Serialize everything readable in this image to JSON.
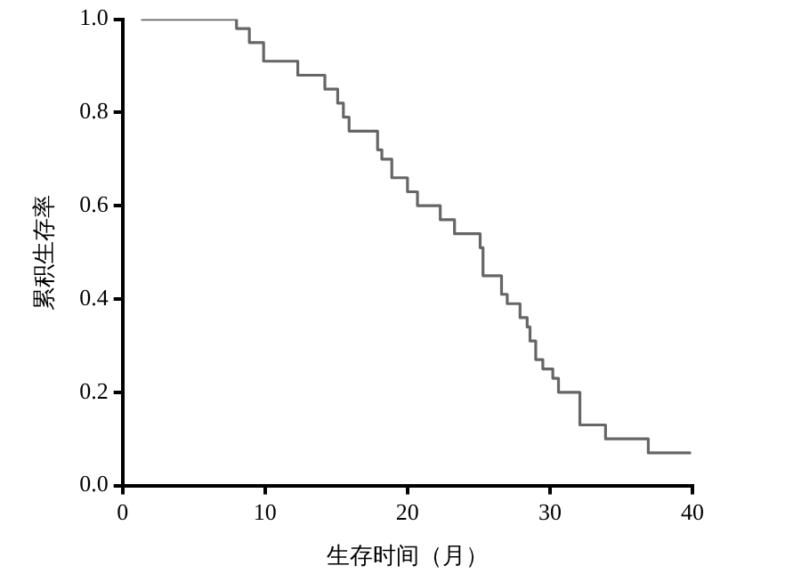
{
  "chart_data": {
    "type": "step",
    "xlabel": "生存时间（月）",
    "ylabel": "累积生存率",
    "x": [
      1.3,
      8.0,
      8.9,
      9.9,
      12.3,
      14.2,
      15.1,
      15.5,
      15.9,
      17.9,
      18.2,
      18.9,
      20.0,
      20.7,
      22.3,
      23.3,
      25.1,
      25.3,
      26.6,
      27.0,
      27.9,
      28.4,
      28.6,
      29.0,
      29.5,
      30.2,
      30.6,
      32.1,
      33.9,
      36.9,
      39.9
    ],
    "series": [
      {
        "color": "#666666",
        "values": [
          1.0,
          0.98,
          0.95,
          0.91,
          0.88,
          0.85,
          0.82,
          0.79,
          0.76,
          0.72,
          0.7,
          0.66,
          0.63,
          0.6,
          0.57,
          0.54,
          0.51,
          0.45,
          0.41,
          0.39,
          0.36,
          0.34,
          0.31,
          0.27,
          0.25,
          0.23,
          0.2,
          0.13,
          0.1,
          0.07,
          0.07
        ]
      }
    ],
    "xlim": [
      0,
      40
    ],
    "xticks": [
      0,
      10,
      20,
      30,
      40
    ],
    "ylim": [
      0,
      1
    ],
    "yticks": [
      {
        "value": 0,
        "label": "0.0"
      },
      0.2,
      0.4,
      0.6,
      0.8,
      {
        "value": 1,
        "label": "1.0"
      }
    ],
    "grid": false,
    "legend": false,
    "marker": "none",
    "line_style": "solid"
  }
}
